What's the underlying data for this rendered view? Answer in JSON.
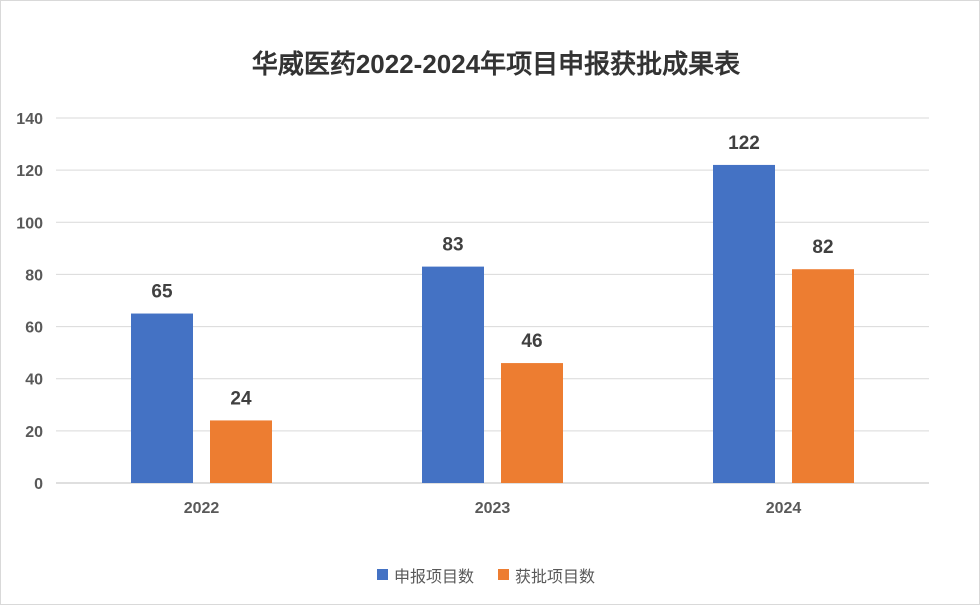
{
  "chart_data": {
    "type": "bar",
    "title": "华威医药2022-2024年项目申报获批成果表",
    "categories": [
      "2022",
      "2023",
      "2024"
    ],
    "series": [
      {
        "name": "申报项目数",
        "values": [
          65,
          83,
          122
        ],
        "color": "#4472C4"
      },
      {
        "name": "获批项目数",
        "values": [
          24,
          46,
          82
        ],
        "color": "#ED7D31"
      }
    ],
    "xlabel": "",
    "ylabel": "",
    "ylim": [
      0,
      140
    ],
    "yticks": [
      0,
      20,
      40,
      60,
      80,
      100,
      120,
      140
    ],
    "grid": true,
    "data_labels": true,
    "legend": "bottom"
  }
}
